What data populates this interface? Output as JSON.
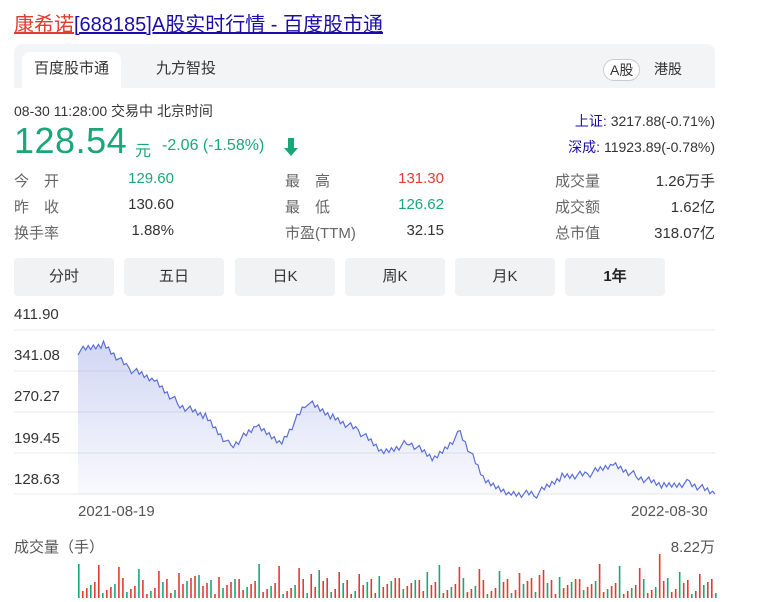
{
  "title": {
    "name": "康希诺",
    "rest": "[688185]A股实时行情 - 百度股市通"
  },
  "source_tabs": [
    "百度股市通",
    "九方智投"
  ],
  "market_tabs": [
    "A股",
    "港股"
  ],
  "status": {
    "datetime": "08-30 11:28:00",
    "trade_status": "交易中",
    "timezone": "北京时间"
  },
  "quote": {
    "price": "128.54",
    "unit": "元",
    "change": "-2.06 (-1.58%)"
  },
  "indices": [
    {
      "label": "上证:",
      "value": "3217.88(-0.71%)"
    },
    {
      "label": "深成:",
      "value": "11923.89(-0.78%)"
    }
  ],
  "stats": {
    "col1": [
      {
        "label": "今　开",
        "value": "129.60",
        "color": "green"
      },
      {
        "label": "昨　收",
        "value": "130.60",
        "color": "normal"
      },
      {
        "label": "换手率",
        "value": "1.88%",
        "color": "normal"
      }
    ],
    "col2": [
      {
        "label": "最　高",
        "value": "131.30",
        "color": "red"
      },
      {
        "label": "最　低",
        "value": "126.62",
        "color": "green"
      },
      {
        "label": "市盈(TTM)",
        "value": "32.15",
        "color": "normal"
      }
    ],
    "col3": [
      {
        "label": "成交量",
        "value": "1.26万手",
        "color": "normal"
      },
      {
        "label": "成交额",
        "value": "1.62亿",
        "color": "normal"
      },
      {
        "label": "总市值",
        "value": "318.07亿",
        "color": "normal"
      }
    ]
  },
  "periods": [
    "分时",
    "五日",
    "日K",
    "周K",
    "月K",
    "1年"
  ],
  "active_period": "1年",
  "chart_data": {
    "type": "area",
    "y_ticks": [
      "411.90",
      "341.08",
      "270.27",
      "199.45",
      "128.63"
    ],
    "ylim": [
      128.63,
      411.9
    ],
    "x_ticks": [
      "2021-08-19",
      "2022-08-30"
    ],
    "x": [
      "2021-08-19",
      "2021-09-01",
      "2021-09-15",
      "2021-10-01",
      "2021-10-15",
      "2021-11-01",
      "2021-11-15",
      "2021-12-01",
      "2021-12-15",
      "2022-01-01",
      "2022-01-15",
      "2022-02-01",
      "2022-02-15",
      "2022-03-01",
      "2022-03-15",
      "2022-04-01",
      "2022-04-15",
      "2022-05-01",
      "2022-05-15",
      "2022-06-01",
      "2022-06-15",
      "2022-07-01",
      "2022-07-15",
      "2022-08-01",
      "2022-08-15",
      "2022-08-30"
    ],
    "values": [
      375,
      388,
      345,
      325,
      282,
      262,
      210,
      245,
      218,
      288,
      262,
      238,
      200,
      218,
      188,
      235,
      148,
      130,
      128,
      160,
      162,
      180,
      158,
      142,
      148,
      128.54
    ],
    "color": "#5b6fd6",
    "volume_label": "成交量（手）",
    "volume_max": "8.22万"
  }
}
